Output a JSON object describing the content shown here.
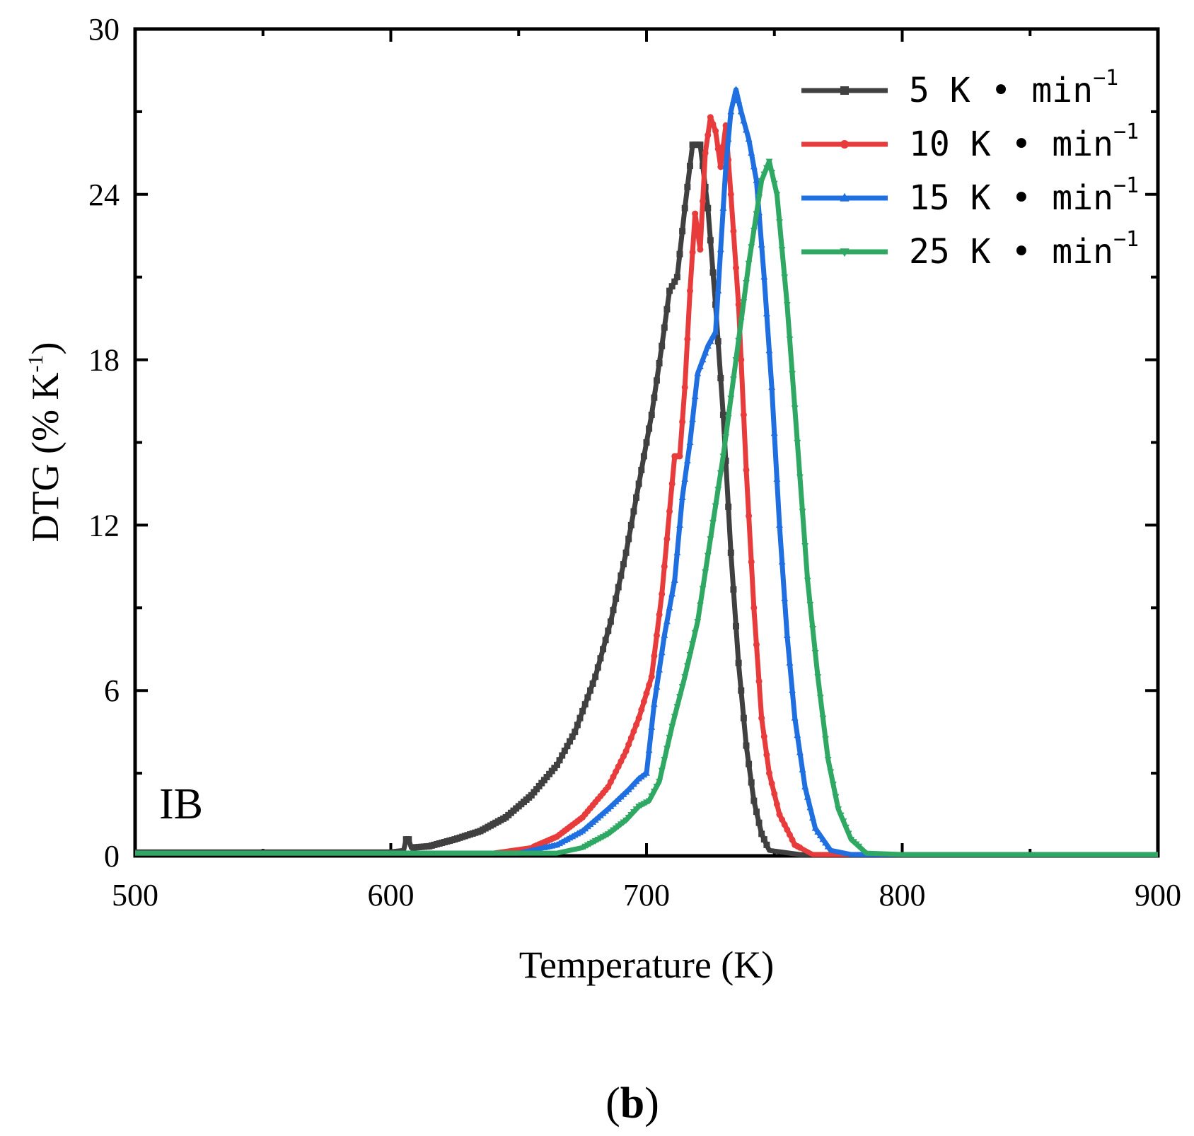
{
  "chart_data": {
    "type": "line",
    "title": "",
    "xlabel": "Temperature (K)",
    "ylabel": "DTG (% K-1)",
    "ylabel_main": "DTG (% K",
    "ylabel_sup": "-1",
    "ylabel_close": ")",
    "xlim": [
      500,
      900
    ],
    "ylim": [
      0,
      30
    ],
    "x_ticks": [
      "500",
      "600",
      "700",
      "800",
      "900"
    ],
    "y_ticks": [
      "0",
      "6",
      "12",
      "18",
      "24",
      "30"
    ],
    "panel_label": "IB",
    "sub_label_open": "(",
    "sub_label_letter": "b",
    "sub_label_close": ")",
    "legend_position": "top-right",
    "series": [
      {
        "name": "5 K • min-1",
        "rate_label": "5 K • min",
        "unit_sup": "−1",
        "color": "#404040",
        "marker": "square",
        "points": [
          [
            500,
            0.15
          ],
          [
            600,
            0.15
          ],
          [
            605,
            0.2
          ],
          [
            606,
            0.6
          ],
          [
            607,
            0.6
          ],
          [
            608,
            0.3
          ],
          [
            615,
            0.35
          ],
          [
            625,
            0.6
          ],
          [
            635,
            0.9
          ],
          [
            645,
            1.4
          ],
          [
            655,
            2.2
          ],
          [
            665,
            3.3
          ],
          [
            672,
            4.5
          ],
          [
            680,
            6.5
          ],
          [
            686,
            8.5
          ],
          [
            692,
            11
          ],
          [
            697,
            13.5
          ],
          [
            702,
            16
          ],
          [
            706,
            18.5
          ],
          [
            709,
            20.5
          ],
          [
            712,
            21
          ],
          [
            715,
            23.5
          ],
          [
            718,
            25.8
          ],
          [
            721,
            25.8
          ],
          [
            724,
            23.5
          ],
          [
            727,
            20
          ],
          [
            730,
            16
          ],
          [
            733,
            11
          ],
          [
            736,
            7
          ],
          [
            739,
            4
          ],
          [
            742,
            2
          ],
          [
            745,
            0.8
          ],
          [
            748,
            0.2
          ],
          [
            760,
            0.05
          ],
          [
            800,
            0.05
          ],
          [
            900,
            0.05
          ]
        ]
      },
      {
        "name": "10 K • min-1",
        "rate_label": "10 K • min",
        "unit_sup": "−1",
        "color": "#e83c3c",
        "marker": "circle",
        "points": [
          [
            500,
            0.1
          ],
          [
            640,
            0.1
          ],
          [
            655,
            0.3
          ],
          [
            665,
            0.7
          ],
          [
            675,
            1.4
          ],
          [
            685,
            2.5
          ],
          [
            692,
            3.8
          ],
          [
            697,
            5
          ],
          [
            702,
            6.5
          ],
          [
            706,
            9.5
          ],
          [
            709,
            12.5
          ],
          [
            711,
            14.5
          ],
          [
            713,
            14.5
          ],
          [
            715,
            17
          ],
          [
            717,
            20.5
          ],
          [
            719,
            23.3
          ],
          [
            721,
            22
          ],
          [
            723,
            25.5
          ],
          [
            725,
            26.8
          ],
          [
            727,
            26.3
          ],
          [
            729,
            25
          ],
          [
            731,
            26.5
          ],
          [
            733,
            24
          ],
          [
            736,
            20
          ],
          [
            739,
            14
          ],
          [
            742,
            9
          ],
          [
            745,
            5
          ],
          [
            748,
            3
          ],
          [
            752,
            1.5
          ],
          [
            758,
            0.4
          ],
          [
            765,
            0.05
          ],
          [
            800,
            0.05
          ],
          [
            900,
            0.05
          ]
        ]
      },
      {
        "name": "15 K • min-1",
        "rate_label": "15 K • min",
        "unit_sup": "−1",
        "color": "#1f6fe0",
        "marker": "triangle-up",
        "points": [
          [
            500,
            0.1
          ],
          [
            650,
            0.1
          ],
          [
            665,
            0.4
          ],
          [
            675,
            0.9
          ],
          [
            685,
            1.7
          ],
          [
            693,
            2.4
          ],
          [
            697,
            2.8
          ],
          [
            700,
            3
          ],
          [
            703,
            5.5
          ],
          [
            707,
            8
          ],
          [
            711,
            10
          ],
          [
            714,
            13
          ],
          [
            717,
            15
          ],
          [
            720,
            17.5
          ],
          [
            724,
            18.5
          ],
          [
            727,
            19
          ],
          [
            729,
            22
          ],
          [
            731,
            25
          ],
          [
            733,
            27
          ],
          [
            735,
            27.8
          ],
          [
            737,
            27
          ],
          [
            740,
            26
          ],
          [
            743,
            24.5
          ],
          [
            746,
            21
          ],
          [
            749,
            17
          ],
          [
            752,
            12
          ],
          [
            755,
            8
          ],
          [
            758,
            5
          ],
          [
            762,
            2.5
          ],
          [
            766,
            1
          ],
          [
            772,
            0.2
          ],
          [
            780,
            0.05
          ],
          [
            900,
            0.05
          ]
        ]
      },
      {
        "name": "25 K • min-1",
        "rate_label": "25 K • min",
        "unit_sup": "−1",
        "color": "#2ea862",
        "marker": "triangle-down",
        "points": [
          [
            500,
            0.1
          ],
          [
            665,
            0.1
          ],
          [
            675,
            0.3
          ],
          [
            685,
            0.8
          ],
          [
            692,
            1.3
          ],
          [
            697,
            1.8
          ],
          [
            701,
            2
          ],
          [
            705,
            2.7
          ],
          [
            710,
            4.7
          ],
          [
            715,
            6.5
          ],
          [
            720,
            8.5
          ],
          [
            725,
            11.5
          ],
          [
            730,
            14.5
          ],
          [
            735,
            18
          ],
          [
            740,
            21.5
          ],
          [
            745,
            24.5
          ],
          [
            748,
            25.2
          ],
          [
            751,
            24
          ],
          [
            755,
            20
          ],
          [
            759,
            15
          ],
          [
            763,
            10
          ],
          [
            767,
            6.5
          ],
          [
            771,
            3.5
          ],
          [
            775,
            1.7
          ],
          [
            780,
            0.6
          ],
          [
            786,
            0.1
          ],
          [
            800,
            0.05
          ],
          [
            900,
            0.05
          ]
        ]
      }
    ]
  }
}
